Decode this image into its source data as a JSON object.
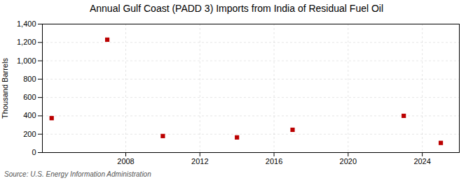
{
  "chart_data": {
    "type": "scatter",
    "title": "Annual Gulf Coast (PADD 3) Imports from India of Residual Fuel Oil",
    "ylabel": "Thousand Barrels",
    "annotations": [
      "Source: U.S. Energy Information Administration"
    ],
    "x": [
      2004,
      2007,
      2010,
      2014,
      2017,
      2023,
      2025
    ],
    "values": [
      375,
      1230,
      180,
      165,
      248,
      400,
      105
    ],
    "color": "#bb0000",
    "marker": "square",
    "xlim": [
      2003.5,
      2026
    ],
    "xticks": [
      2008,
      2012,
      2016,
      2020,
      2024
    ],
    "ylim": [
      0,
      1400
    ],
    "yticks": [
      0,
      200,
      400,
      600,
      800,
      {
        "value": 1000,
        "label": "1,000"
      },
      {
        "value": 1200,
        "label": "1,200"
      },
      {
        "value": 1400,
        "label": "1,400"
      }
    ],
    "grid": true
  }
}
